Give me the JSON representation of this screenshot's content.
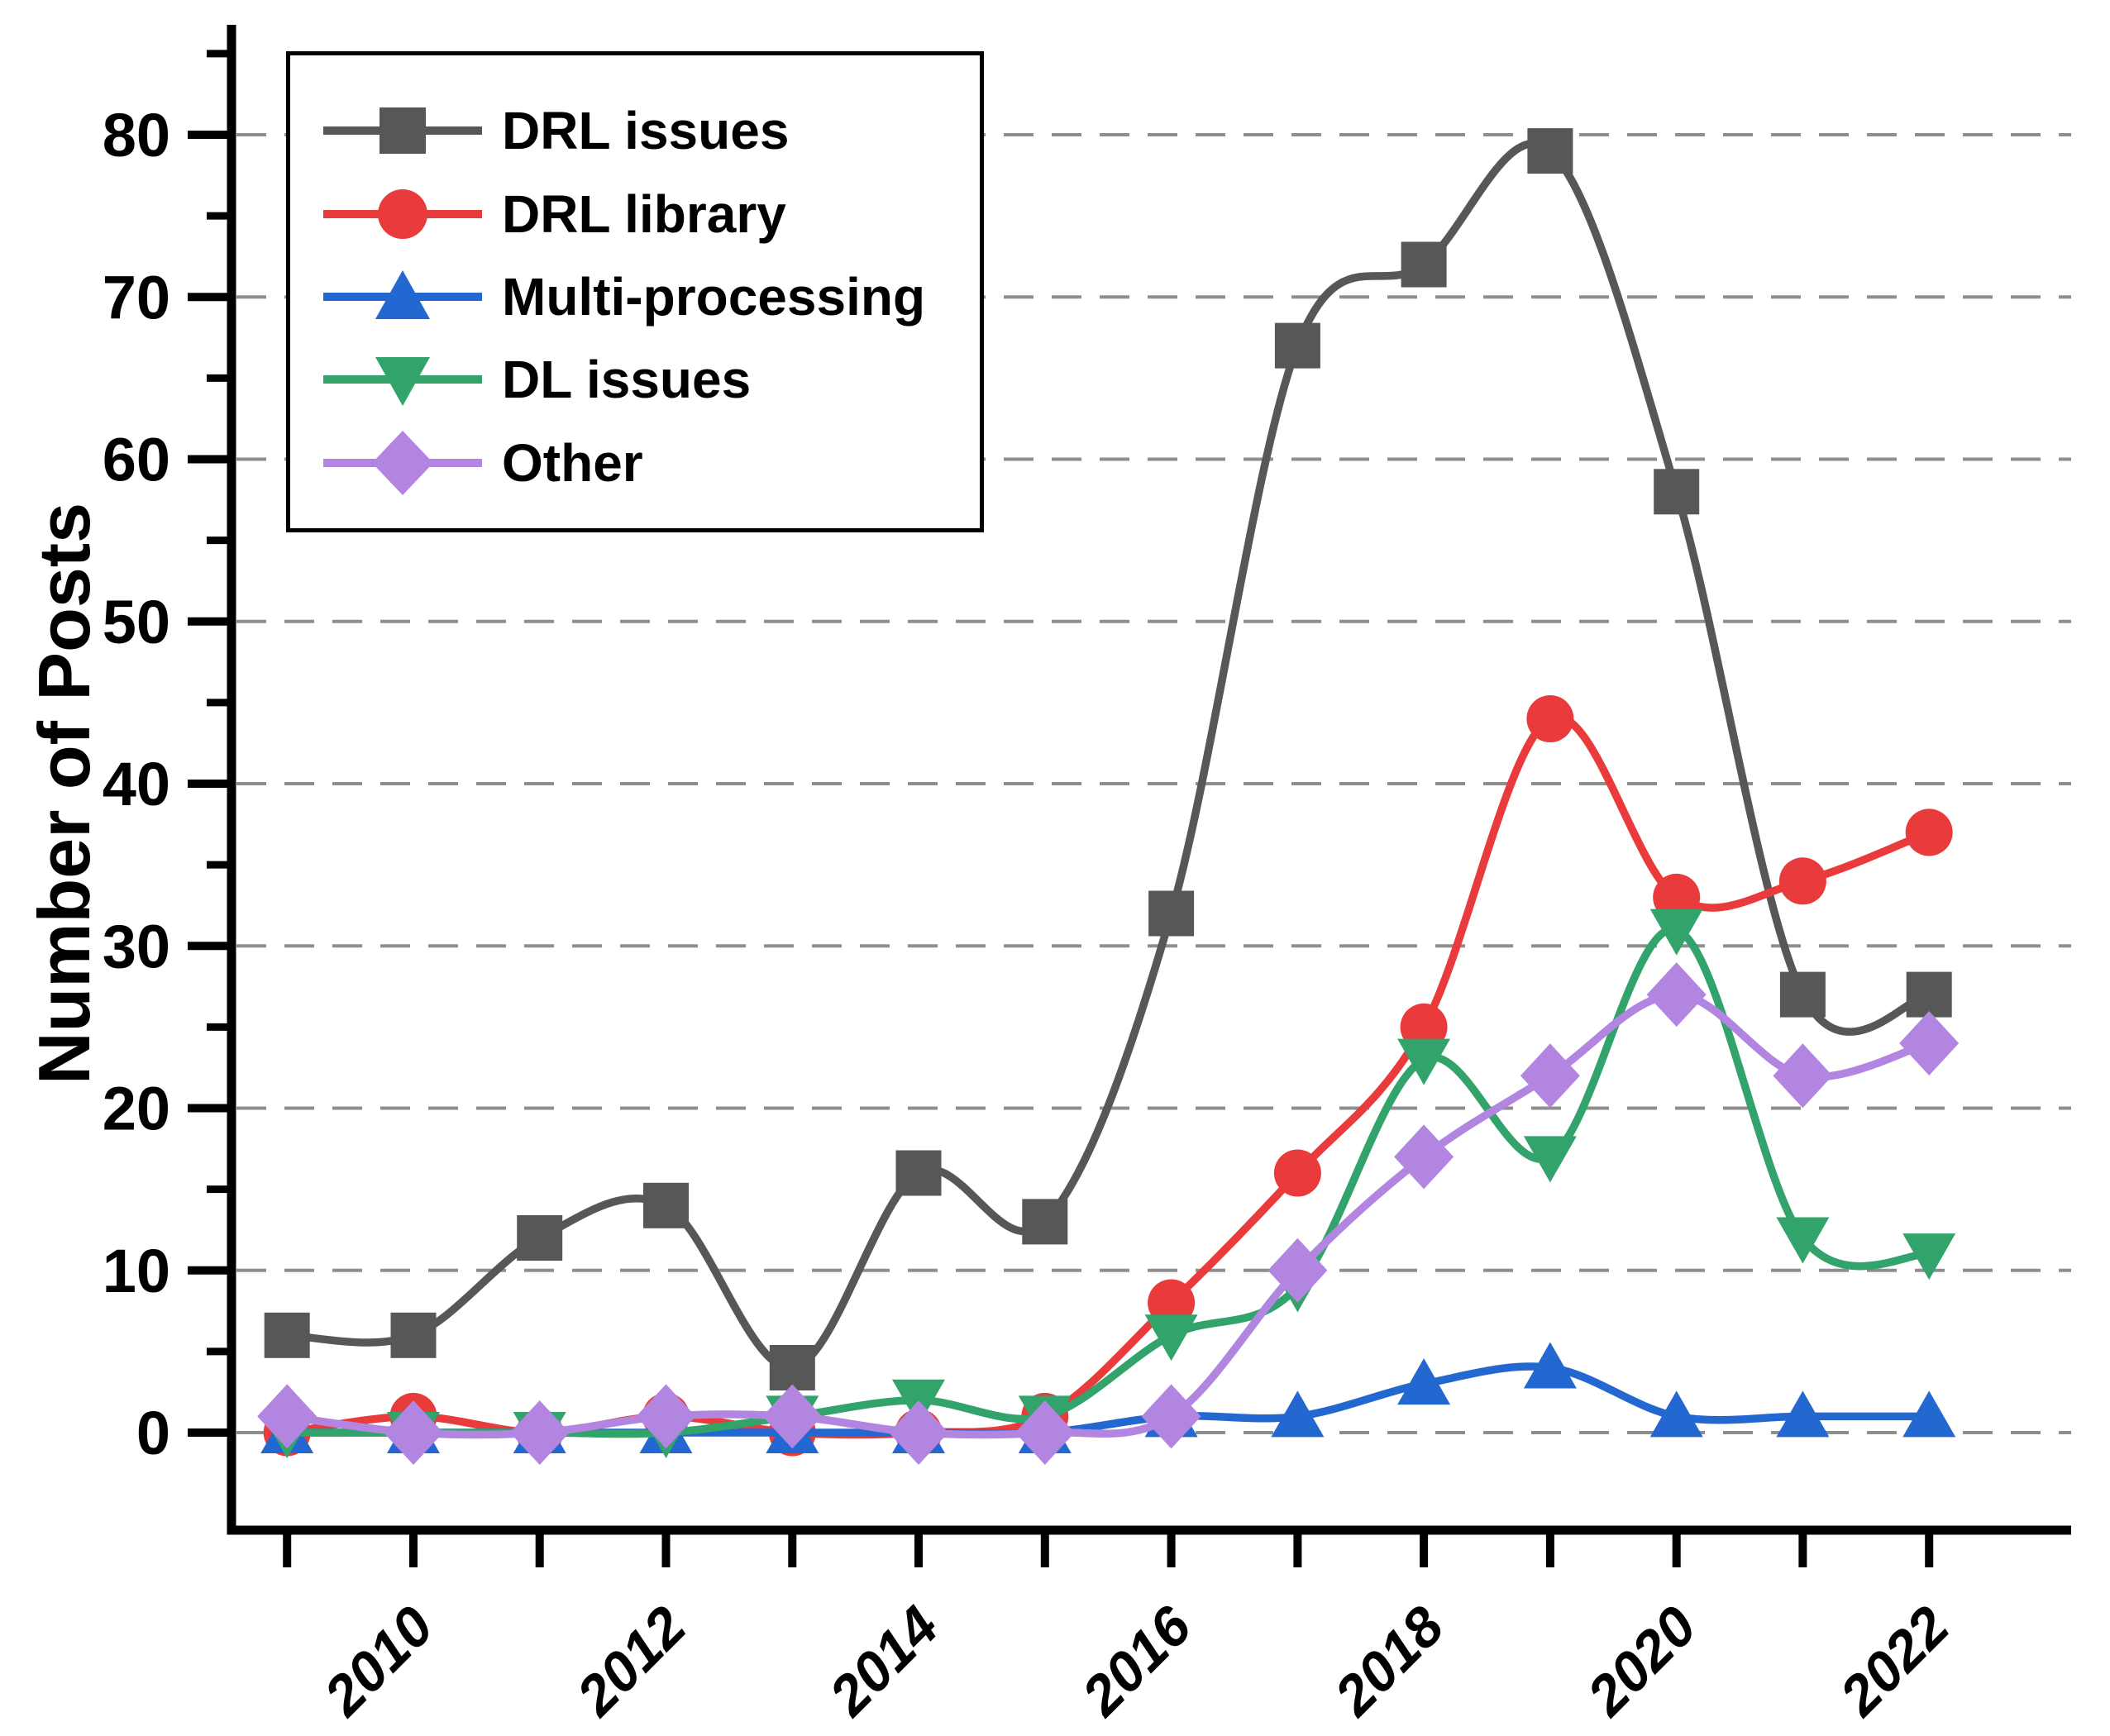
{
  "chart_data": {
    "type": "line",
    "title": "",
    "xlabel": "",
    "ylabel": "Number of Posts",
    "x": [
      2009,
      2010,
      2011,
      2012,
      2013,
      2014,
      2015,
      2016,
      2017,
      2018,
      2019,
      2020,
      2021,
      2022
    ],
    "xtick_labels": [
      "2010",
      "2012",
      "2014",
      "2016",
      "2018",
      "2020",
      "2022"
    ],
    "ytick_labels": [
      "0",
      "10",
      "20",
      "30",
      "40",
      "50",
      "60",
      "70",
      "80"
    ],
    "ylim": [
      0,
      80
    ],
    "ytick_step": 10,
    "ytick_minor_step": 5,
    "grid": "horizontal-dashed",
    "grid_color": "#8e8e8e",
    "axis_color": "#000000",
    "legend_position": "top-left",
    "smoothing": "spline",
    "series": [
      {
        "label": "DRL issues",
        "color": "#575757",
        "marker": "square",
        "values": [
          6,
          6,
          12,
          14,
          4,
          16,
          13,
          32,
          67,
          72,
          79,
          58,
          27,
          27
        ]
      },
      {
        "label": "DRL library",
        "color": "#e93a3c",
        "marker": "circle",
        "values": [
          0,
          1,
          0,
          1,
          0,
          0,
          1,
          8,
          16,
          25,
          44,
          33,
          34,
          37
        ]
      },
      {
        "label": "Multi-processing",
        "color": "#2368d1",
        "marker": "triangle-up",
        "values": [
          0,
          0,
          0,
          0,
          0,
          0,
          0,
          1,
          1,
          3,
          4,
          1,
          1,
          1
        ]
      },
      {
        "label": "DL issues",
        "color": "#31a36b",
        "marker": "triangle-down",
        "values": [
          0,
          0,
          0,
          0,
          1,
          2,
          1,
          6,
          9,
          23,
          17,
          31,
          12,
          11
        ]
      },
      {
        "label": "Other",
        "color": "#b286e0",
        "marker": "diamond",
        "values": [
          1,
          0,
          0,
          1,
          1,
          0,
          0,
          1,
          10,
          17,
          22,
          27,
          22,
          24
        ]
      }
    ]
  }
}
